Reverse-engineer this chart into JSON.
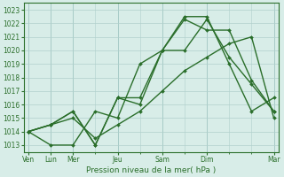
{
  "xlabel": "Pression niveau de la mer( hPa )",
  "bg_color": "#cce8e4",
  "plot_bg_color": "#d8ede8",
  "grid_color": "#b0d0cc",
  "line_color": "#2a6e2a",
  "ylim": [
    1012.5,
    1023.5
  ],
  "xlim": [
    -0.2,
    11.2
  ],
  "yticks": [
    1013,
    1014,
    1015,
    1016,
    1017,
    1018,
    1019,
    1020,
    1021,
    1022,
    1023
  ],
  "xtick_positions": [
    0,
    1,
    2,
    4,
    6,
    8,
    11
  ],
  "xtick_labels": [
    "Ven",
    "Lun",
    "Mer",
    "Jeu",
    "Sam",
    "Dim",
    "Mar"
  ],
  "series": [
    [
      1014.0,
      1014.5,
      1015.5,
      1013.0,
      1016.5,
      1016.0,
      1020.0,
      1020.0,
      1022.3,
      1019.5,
      1017.5,
      1015.5
    ],
    [
      1014.0,
      1013.0,
      1013.0,
      1015.5,
      1015.0,
      1019.0,
      1020.0,
      1022.3,
      1021.5,
      1021.5,
      1017.8,
      1015.5
    ],
    [
      1014.0,
      1014.5,
      1015.5,
      1013.0,
      1016.5,
      1016.5,
      1020.0,
      1022.5,
      1022.5,
      1019.0,
      1015.5,
      1016.5
    ],
    [
      1014.0,
      1014.5,
      1015.0,
      1013.5,
      1014.5,
      1015.5,
      1017.0,
      1018.5,
      1019.5,
      1020.5,
      1021.0,
      1015.0
    ]
  ],
  "figsize": [
    3.2,
    2.0
  ],
  "dpi": 100,
  "ylabel_fontsize": 5.5,
  "xlabel_fontsize": 6.5,
  "tick_fontsize": 5.5,
  "linewidth": 1.0,
  "markersize": 2.0
}
